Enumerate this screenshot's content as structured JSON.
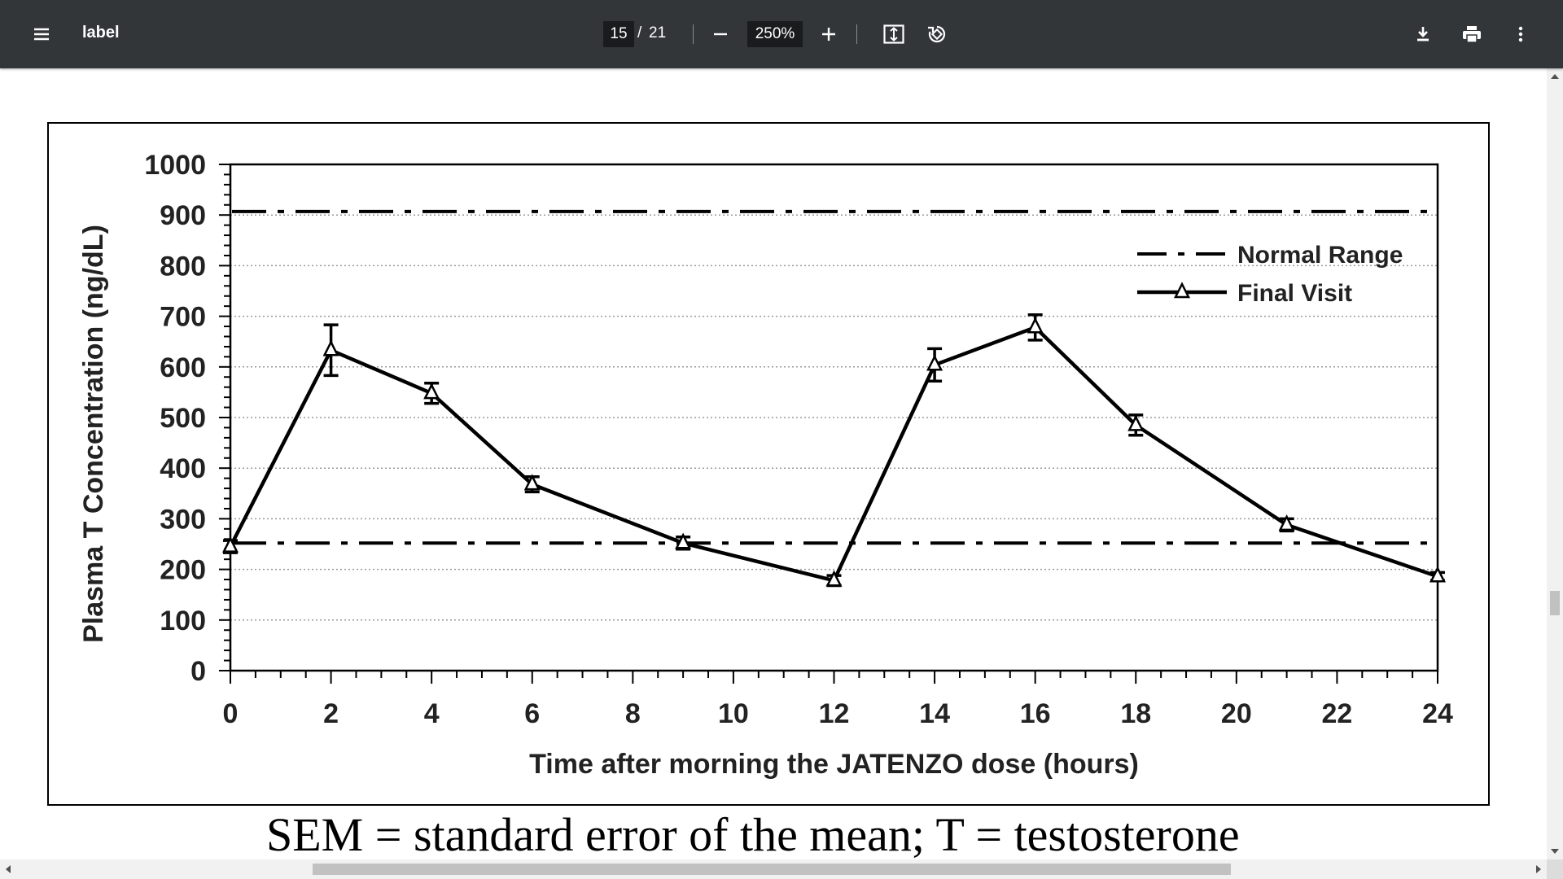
{
  "toolbar": {
    "title": "label",
    "page_current": "15",
    "page_separator": "/",
    "page_total": "21",
    "zoom": "250%",
    "icons": {
      "menu": "menu-icon",
      "zoom_out": "minus-icon",
      "zoom_in": "plus-icon",
      "fit": "fit-to-page-icon",
      "rotate": "rotate-icon",
      "download": "download-icon",
      "print": "print-icon",
      "more": "more-vert-icon"
    },
    "colors": {
      "background": "#323639",
      "text": "#ffffff"
    }
  },
  "caption": "SEM = standard error of the mean; T = testosterone",
  "chart_data": {
    "type": "line",
    "xlabel": "Time after morning the JATENZO dose (hours)",
    "ylabel": "Plasma T Concentration (ng/dL)",
    "xlim": [
      0,
      24
    ],
    "ylim": [
      0,
      1000
    ],
    "x_ticks": [
      "0",
      "2",
      "4",
      "6",
      "8",
      "10",
      "12",
      "14",
      "16",
      "18",
      "20",
      "22",
      "24"
    ],
    "y_ticks": [
      "0",
      "100",
      "200",
      "300",
      "400",
      "500",
      "600",
      "700",
      "800",
      "900",
      "1000"
    ],
    "grid": "horizontal dotted",
    "legend_position": "top-right",
    "reference_lines": [
      {
        "name": "Normal Range",
        "y": 252,
        "style": "dash-dot"
      },
      {
        "name": "Normal Range",
        "y": 907,
        "style": "dash-dot"
      }
    ],
    "series": [
      {
        "name": "Final Visit",
        "marker": "triangle",
        "x": [
          0,
          2,
          4,
          6,
          9,
          12,
          14,
          16,
          18,
          21,
          24
        ],
        "y": [
          245,
          633,
          548,
          368,
          252,
          178,
          604,
          678,
          485,
          288,
          186
        ],
        "error": [
          12,
          50,
          20,
          15,
          12,
          10,
          32,
          25,
          20,
          12,
          8
        ]
      }
    ],
    "legend": [
      {
        "label": "Normal Range",
        "style": "dash-dot"
      },
      {
        "label": "Final Visit",
        "style": "line-triangle"
      }
    ]
  }
}
